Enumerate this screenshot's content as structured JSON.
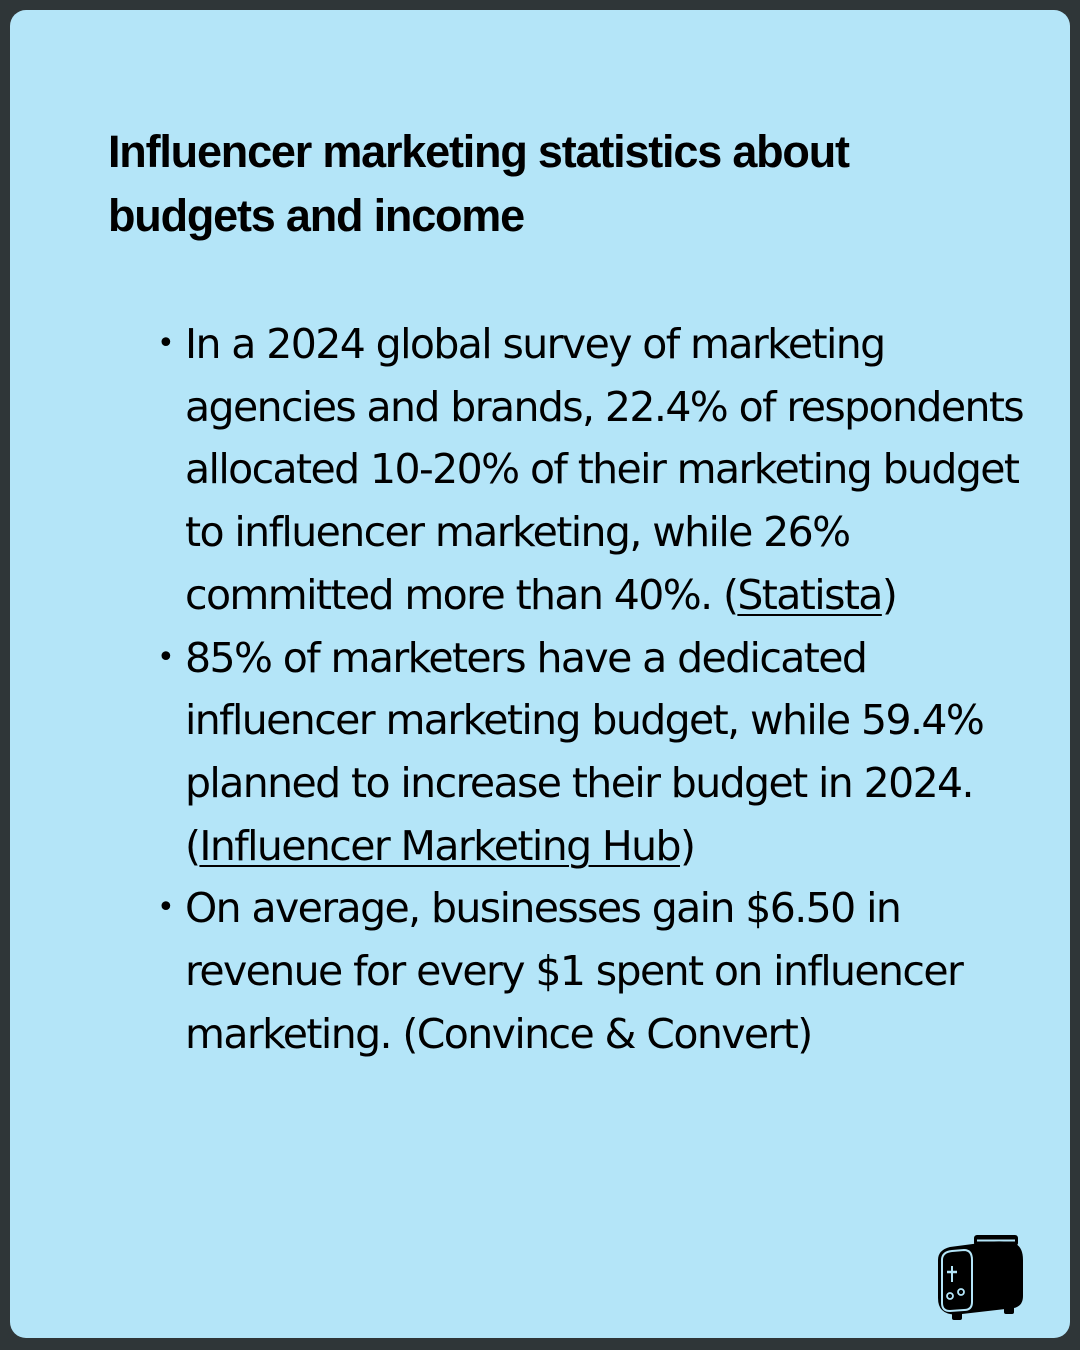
{
  "title": "Influencer marketing statistics about budgets and income",
  "stats": [
    {
      "text": "In a 2024 global survey of marketing agencies and brands, 22.4% of respondents allocated 10-20% of their marketing budget to influencer marketing, while 26% committed more than 40%. (",
      "source": "Statista",
      "source_is_link": true,
      "close": ")"
    },
    {
      "text": "85% of marketers have a dedicated influencer marketing budget, while 59.4% planned to increase their budget in 2024. (",
      "source": "Influencer Marketing Hub",
      "source_is_link": true,
      "close": ")"
    },
    {
      "text": "On average, businesses gain $6.50 in revenue for every $1 spent on influencer marketing. (",
      "source": "Convince & Convert",
      "source_is_link": false,
      "close": ")"
    }
  ],
  "colors": {
    "background": "#b4e5f8",
    "frame": "#2f3638",
    "text": "#000000"
  },
  "icons": {
    "logo": "toaster-icon"
  }
}
